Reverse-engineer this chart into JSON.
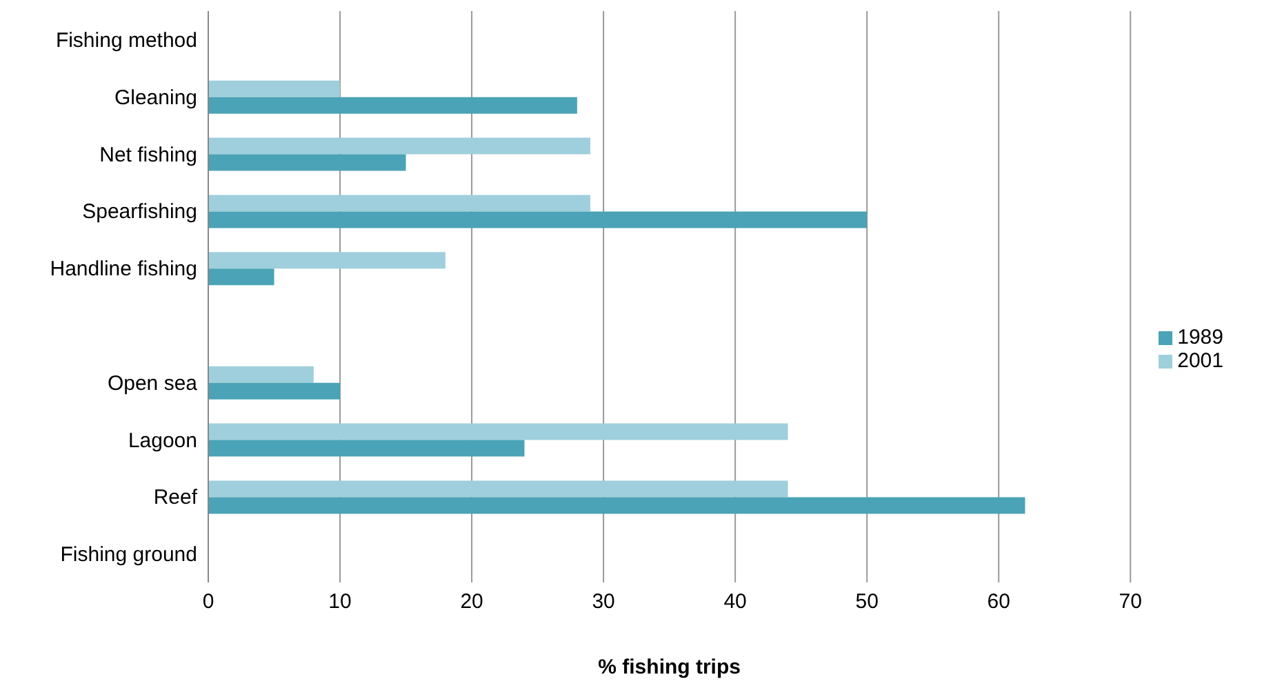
{
  "chart_data": {
    "type": "bar",
    "orientation": "horizontal",
    "xlabel": "% fishing trips",
    "categories": [
      "Fishing method",
      "Gleaning",
      "Net fishing",
      "Spearfishing",
      "Handline fishing",
      null,
      "Open sea",
      "Lagoon",
      "Reef",
      "Fishing ground"
    ],
    "series": [
      {
        "name": "2001",
        "color": "#9fcfdc",
        "values": [
          null,
          10,
          29,
          29,
          18,
          null,
          8,
          44,
          44,
          null
        ]
      },
      {
        "name": "1989",
        "color": "#4aa3b6",
        "values": [
          null,
          28,
          15,
          50,
          5,
          null,
          10,
          24,
          62,
          null
        ]
      }
    ],
    "xlim": [
      0,
      70
    ],
    "xticks": [
      0,
      10,
      20,
      30,
      40,
      50,
      60,
      70
    ],
    "grid": "x",
    "legend": "right"
  }
}
